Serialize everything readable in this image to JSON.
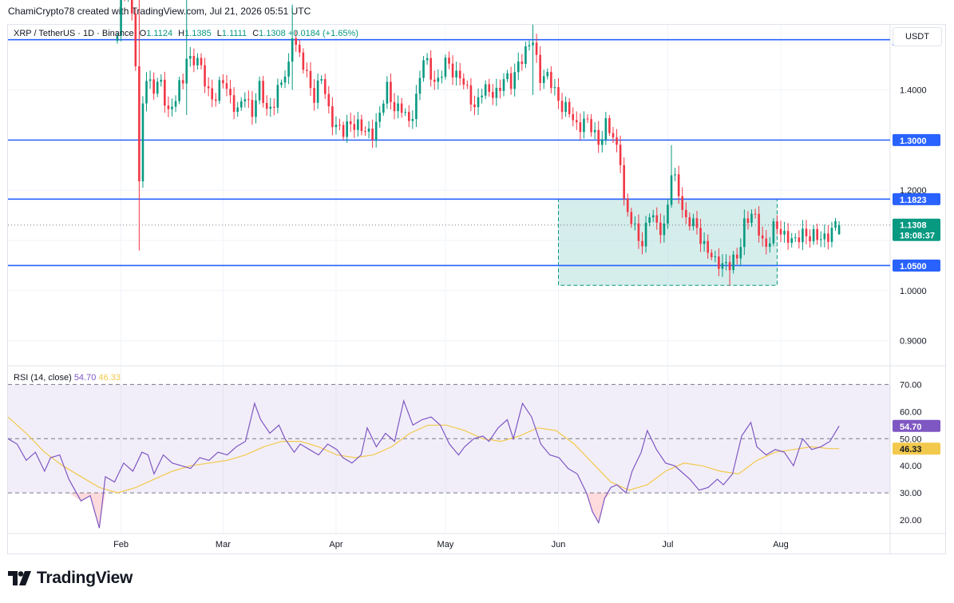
{
  "header": {
    "text": "ChamiCrypto78 created with TradingView.com, Jul 21, 2026 05:51 UTC"
  },
  "legend": {
    "symbol": "XRP / TetherUS · 1D · Binance",
    "open_label": "O",
    "open": "1.1124",
    "high_label": "H",
    "high": "1.1385",
    "low_label": "L",
    "low": "1.1111",
    "close_label": "C",
    "close": "1.1308",
    "change": "+0.0184 (+1.65%)"
  },
  "currency_button": "USDT",
  "rsi_legend": {
    "label": "RSI (14, close)",
    "rsi_value": "54.70",
    "ma_value": "46.33"
  },
  "price_tags": {
    "price": "1.1308",
    "countdown": "18:08:37",
    "rsi": "54.70",
    "rsi_ma": "46.33"
  },
  "logo_text": "TradingView",
  "colors": {
    "up": "#089981",
    "down": "#f23645",
    "level": "#2962ff",
    "rsi": "#7e57c2",
    "rsi_ma": "#f2c94c",
    "zone": "#b2dfdb"
  },
  "chart_data": [
    {
      "type": "candlestick",
      "title": "XRP / TetherUS · 1D · Binance",
      "x_tick_labels": [
        "Feb",
        "Mar",
        "Apr",
        "May",
        "Jun",
        "Jul",
        "Aug"
      ],
      "y_tick_labels": [
        "1.0000",
        "1.2000",
        "1.4000",
        "0.9000"
      ],
      "ylim": [
        0.855,
        1.49
      ],
      "horizontal_levels": [
        {
          "label": "1.5000",
          "value": 1.5
        },
        {
          "label": "1.3000",
          "value": 1.3
        },
        {
          "label": "1.1823",
          "value": 1.1823
        },
        {
          "label": "1.0500",
          "value": 1.05
        }
      ],
      "range_box": {
        "start": "2026-06-01",
        "end": "2026-07-31",
        "top": 1.1823,
        "bottom": 1.0105
      },
      "last_candle": {
        "open": 1.1124,
        "high": 1.1385,
        "low": 1.1111,
        "close": 1.1308
      },
      "pivots": [
        [
          "2026-01-31",
          1.5
        ],
        [
          "2026-02-01",
          1.6
        ],
        [
          "2026-02-03",
          1.62
        ],
        [
          "2026-02-04",
          1.55
        ],
        [
          "2026-02-05",
          1.45
        ],
        [
          "2026-02-06",
          1.2
        ],
        [
          "2026-02-07",
          1.38
        ],
        [
          "2026-02-08",
          1.43
        ],
        [
          "2026-02-10",
          1.4
        ],
        [
          "2026-02-12",
          1.41
        ],
        [
          "2026-02-14",
          1.36
        ],
        [
          "2026-02-16",
          1.38
        ],
        [
          "2026-02-18",
          1.42
        ],
        [
          "2026-02-19",
          1.47
        ],
        [
          "2026-02-21",
          1.46
        ],
        [
          "2026-02-23",
          1.44
        ],
        [
          "2026-02-25",
          1.4
        ],
        [
          "2026-02-27",
          1.38
        ],
        [
          "2026-03-01",
          1.42
        ],
        [
          "2026-03-03",
          1.39
        ],
        [
          "2026-03-05",
          1.35
        ],
        [
          "2026-03-07",
          1.39
        ],
        [
          "2026-03-09",
          1.36
        ],
        [
          "2026-03-11",
          1.4
        ],
        [
          "2026-03-13",
          1.36
        ],
        [
          "2026-03-15",
          1.38
        ],
        [
          "2026-03-17",
          1.41
        ],
        [
          "2026-03-19",
          1.45
        ],
        [
          "2026-03-20",
          1.52
        ],
        [
          "2026-03-22",
          1.46
        ],
        [
          "2026-03-24",
          1.43
        ],
        [
          "2026-03-26",
          1.39
        ],
        [
          "2026-03-28",
          1.42
        ],
        [
          "2026-03-30",
          1.36
        ],
        [
          "2026-04-01",
          1.33
        ],
        [
          "2026-04-03",
          1.31
        ],
        [
          "2026-04-05",
          1.34
        ],
        [
          "2026-04-07",
          1.33
        ],
        [
          "2026-04-09",
          1.31
        ],
        [
          "2026-04-11",
          1.32
        ],
        [
          "2026-04-13",
          1.35
        ],
        [
          "2026-04-15",
          1.4
        ],
        [
          "2026-04-17",
          1.37
        ],
        [
          "2026-04-19",
          1.36
        ],
        [
          "2026-04-21",
          1.33
        ],
        [
          "2026-04-23",
          1.39
        ],
        [
          "2026-04-25",
          1.46
        ],
        [
          "2026-04-27",
          1.43
        ],
        [
          "2026-04-29",
          1.42
        ],
        [
          "2026-05-01",
          1.45
        ],
        [
          "2026-05-03",
          1.44
        ],
        [
          "2026-05-05",
          1.43
        ],
        [
          "2026-05-07",
          1.39
        ],
        [
          "2026-05-09",
          1.37
        ],
        [
          "2026-05-11",
          1.4
        ],
        [
          "2026-05-13",
          1.39
        ],
        [
          "2026-05-15",
          1.4
        ],
        [
          "2026-05-17",
          1.42
        ],
        [
          "2026-05-19",
          1.41
        ],
        [
          "2026-05-21",
          1.46
        ],
        [
          "2026-05-23",
          1.47
        ],
        [
          "2026-05-25",
          1.5
        ],
        [
          "2026-05-27",
          1.43
        ],
        [
          "2026-05-29",
          1.42
        ],
        [
          "2026-05-31",
          1.4
        ],
        [
          "2026-06-02",
          1.37
        ],
        [
          "2026-06-04",
          1.35
        ],
        [
          "2026-06-06",
          1.33
        ],
        [
          "2026-06-08",
          1.34
        ],
        [
          "2026-06-10",
          1.32
        ],
        [
          "2026-06-12",
          1.3
        ],
        [
          "2026-06-14",
          1.33
        ],
        [
          "2026-06-16",
          1.3
        ],
        [
          "2026-06-18",
          1.27
        ],
        [
          "2026-06-19",
          1.18
        ],
        [
          "2026-06-20",
          1.15
        ],
        [
          "2026-06-22",
          1.12
        ],
        [
          "2026-06-24",
          1.1
        ],
        [
          "2026-06-26",
          1.15
        ],
        [
          "2026-06-28",
          1.13
        ],
        [
          "2026-06-30",
          1.13
        ],
        [
          "2026-07-01",
          1.17
        ],
        [
          "2026-07-02",
          1.23
        ],
        [
          "2026-07-04",
          1.2
        ],
        [
          "2026-07-06",
          1.14
        ],
        [
          "2026-07-08",
          1.13
        ],
        [
          "2026-07-10",
          1.11
        ],
        [
          "2026-07-12",
          1.08
        ],
        [
          "2026-07-14",
          1.05
        ],
        [
          "2026-07-16",
          1.06
        ],
        [
          "2026-07-18",
          1.05
        ],
        [
          "2026-07-20",
          1.06
        ],
        [
          "2026-07-21",
          1.1
        ],
        [
          "2026-07-22",
          1.14
        ],
        [
          "2026-07-24",
          1.15
        ],
        [
          "2026-07-26",
          1.12
        ],
        [
          "2026-07-28",
          1.09
        ],
        [
          "2026-07-30",
          1.12
        ],
        [
          "2026-08-01",
          1.12
        ],
        [
          "2026-08-03",
          1.11
        ],
        [
          "2026-08-05",
          1.09
        ],
        [
          "2026-08-07",
          1.12
        ],
        [
          "2026-08-09",
          1.11
        ],
        [
          "2026-08-11",
          1.1
        ],
        [
          "2026-08-13",
          1.11
        ],
        [
          "2026-08-15",
          1.12
        ],
        [
          "2026-08-17",
          1.1308
        ]
      ]
    },
    {
      "type": "line",
      "title": "RSI (14, close)",
      "y_tick_labels": [
        "70.00",
        "60.00",
        "50.00",
        "40.00",
        "30.00",
        "20.00"
      ],
      "ylim": [
        15,
        71
      ],
      "bands": {
        "upper": 70,
        "middle": 50,
        "lower": 30
      },
      "series": [
        {
          "name": "RSI",
          "points": [
            [
              0,
              50
            ],
            [
              3,
              48
            ],
            [
              6,
              42
            ],
            [
              9,
              45
            ],
            [
              12,
              38
            ],
            [
              14,
              43
            ],
            [
              17,
              44
            ],
            [
              20,
              35
            ],
            [
              24,
              27
            ],
            [
              27,
              29
            ],
            [
              30,
              17
            ],
            [
              32,
              36
            ],
            [
              35,
              34
            ],
            [
              38,
              41
            ],
            [
              41,
              38
            ],
            [
              44,
              45
            ],
            [
              46,
              44
            ],
            [
              48,
              37
            ],
            [
              51,
              44
            ],
            [
              54,
              41
            ],
            [
              57,
              40
            ],
            [
              60,
              39
            ],
            [
              63,
              43
            ],
            [
              66,
              42
            ],
            [
              69,
              45
            ],
            [
              72,
              44
            ],
            [
              75,
              47
            ],
            [
              78,
              49
            ],
            [
              81,
              63
            ],
            [
              83,
              57
            ],
            [
              86,
              52
            ],
            [
              89,
              55
            ],
            [
              91,
              50
            ],
            [
              94,
              45
            ],
            [
              96,
              48
            ],
            [
              99,
              46
            ],
            [
              102,
              44
            ],
            [
              105,
              48
            ],
            [
              108,
              46
            ],
            [
              110,
              43
            ],
            [
              113,
              41
            ],
            [
              116,
              44
            ],
            [
              118,
              54
            ],
            [
              121,
              47
            ],
            [
              124,
              52
            ],
            [
              127,
              49
            ],
            [
              130,
              64
            ],
            [
              133,
              55
            ],
            [
              136,
              57
            ],
            [
              139,
              58
            ],
            [
              142,
              55
            ],
            [
              145,
              48
            ],
            [
              148,
              44
            ],
            [
              150,
              47
            ],
            [
              153,
              50
            ],
            [
              156,
              51
            ],
            [
              158,
              49
            ],
            [
              161,
              54
            ],
            [
              164,
              57
            ],
            [
              166,
              50
            ],
            [
              169,
              63
            ],
            [
              172,
              58
            ],
            [
              175,
              48
            ],
            [
              178,
              44
            ],
            [
              181,
              43
            ],
            [
              184,
              39
            ],
            [
              187,
              37
            ],
            [
              190,
              30
            ],
            [
              192,
              23
            ],
            [
              194,
              19
            ],
            [
              196,
              28
            ],
            [
              198,
              32
            ],
            [
              200,
              33
            ],
            [
              203,
              30
            ],
            [
              205,
              38
            ],
            [
              208,
              45
            ],
            [
              210,
              53
            ],
            [
              213,
              46
            ],
            [
              216,
              41
            ],
            [
              219,
              40
            ],
            [
              221,
              38
            ],
            [
              224,
              35
            ],
            [
              227,
              31
            ],
            [
              230,
              32
            ],
            [
              233,
              35
            ],
            [
              235,
              33
            ],
            [
              238,
              37
            ],
            [
              241,
              51
            ],
            [
              244,
              56
            ],
            [
              246,
              47
            ],
            [
              249,
              44
            ],
            [
              252,
              46
            ],
            [
              255,
              45
            ],
            [
              258,
              40
            ],
            [
              261,
              50
            ],
            [
              264,
              46
            ],
            [
              267,
              47
            ],
            [
              270,
              49
            ],
            [
              273,
              54.7
            ]
          ]
        },
        {
          "name": "RSI-based MA",
          "points": [
            [
              0,
              58
            ],
            [
              6,
              52
            ],
            [
              12,
              45
            ],
            [
              18,
              40
            ],
            [
              24,
              36
            ],
            [
              30,
              32
            ],
            [
              36,
              30
            ],
            [
              42,
              32
            ],
            [
              48,
              35
            ],
            [
              54,
              38
            ],
            [
              60,
              40
            ],
            [
              66,
              41
            ],
            [
              72,
              42
            ],
            [
              78,
              44
            ],
            [
              84,
              47
            ],
            [
              90,
              49
            ],
            [
              96,
              49
            ],
            [
              102,
              47
            ],
            [
              108,
              44
            ],
            [
              114,
              43
            ],
            [
              120,
              44
            ],
            [
              126,
              47
            ],
            [
              132,
              52
            ],
            [
              138,
              55
            ],
            [
              144,
              55
            ],
            [
              150,
              53
            ],
            [
              156,
              50
            ],
            [
              162,
              49
            ],
            [
              168,
              51
            ],
            [
              174,
              54
            ],
            [
              180,
              53
            ],
            [
              186,
              48
            ],
            [
              192,
              41
            ],
            [
              198,
              34
            ],
            [
              204,
              31
            ],
            [
              210,
              33
            ],
            [
              216,
              38
            ],
            [
              222,
              41
            ],
            [
              228,
              40
            ],
            [
              234,
              38
            ],
            [
              240,
              37
            ],
            [
              246,
              42
            ],
            [
              252,
              45
            ],
            [
              258,
              46
            ],
            [
              264,
              47
            ],
            [
              270,
              46.3
            ],
            [
              273,
              46.33
            ]
          ]
        }
      ]
    }
  ]
}
